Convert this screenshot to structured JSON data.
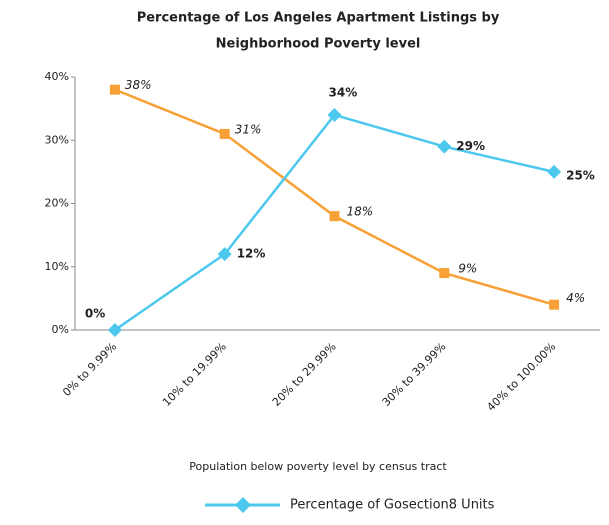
{
  "chart_data": {
    "type": "line",
    "title": [
      "Percentage of Los Angeles Apartment Listings by",
      "Neighborhood Poverty level"
    ],
    "x_label": "Population below poverty level by census tract",
    "categories": [
      "0% to 9.99%",
      "10% to 19.99%",
      "20% to 29.99%",
      "30% to 39.99%",
      "40% to 100.00%"
    ],
    "series": [
      {
        "color": "#f7a035",
        "marker": "square",
        "values": [
          38,
          31,
          18,
          9,
          4
        ],
        "value_labels": [
          "38%",
          "31%",
          "18%",
          "9%",
          "4%"
        ]
      },
      {
        "name": "Percentage of Gosection8 Units",
        "color": "#4cc8ee",
        "marker": "diamond",
        "values": [
          0,
          12,
          34,
          29,
          25
        ],
        "value_labels": [
          "0%",
          "12%",
          "34%",
          "29%",
          "25%"
        ]
      }
    ],
    "ylim": [
      0,
      40
    ],
    "yticks": [
      {
        "value": 0,
        "label": "0%"
      },
      {
        "value": 10,
        "label": "10%"
      },
      {
        "value": 20,
        "label": "20%"
      },
      {
        "value": 30,
        "label": "30%"
      },
      {
        "value": 40,
        "label": "40%"
      }
    ],
    "grid": false,
    "legend": "bottom"
  }
}
